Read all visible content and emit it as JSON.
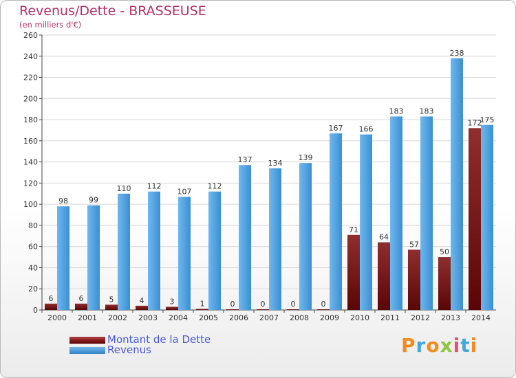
{
  "title": "Revenus/Dette - BRASSEUSE",
  "subtitle": "(en milliers d'€)",
  "logo_text": "Proxiti",
  "colors": {
    "debt": "#7a1a1a",
    "revenue": "#4da3e3",
    "title": "#b0306a",
    "legend_text": "#4a58d8"
  },
  "legend": {
    "debt_label": "Montant de la Dette",
    "revenue_label": "Revenus"
  },
  "chart_data": {
    "type": "bar",
    "title": "Revenus/Dette - BRASSEUSE",
    "subtitle": "(en milliers d'€)",
    "categories": [
      "2000",
      "2001",
      "2002",
      "2003",
      "2004",
      "2005",
      "2006",
      "2007",
      "2008",
      "2009",
      "2010",
      "2011",
      "2012",
      "2013",
      "2014"
    ],
    "series": [
      {
        "name": "Montant de la Dette",
        "values": [
          6,
          6,
          5,
          4,
          3,
          1,
          0,
          0,
          0,
          0,
          71,
          64,
          57,
          50,
          172
        ]
      },
      {
        "name": "Revenus",
        "values": [
          98,
          99,
          110,
          112,
          107,
          112,
          137,
          134,
          139,
          167,
          166,
          183,
          183,
          238,
          175
        ]
      }
    ],
    "ylim": [
      0,
      260
    ],
    "yticks": [
      0,
      20,
      40,
      60,
      80,
      100,
      120,
      140,
      160,
      180,
      200,
      220,
      240,
      260
    ],
    "grid": true,
    "legend_position": "bottom-left"
  }
}
